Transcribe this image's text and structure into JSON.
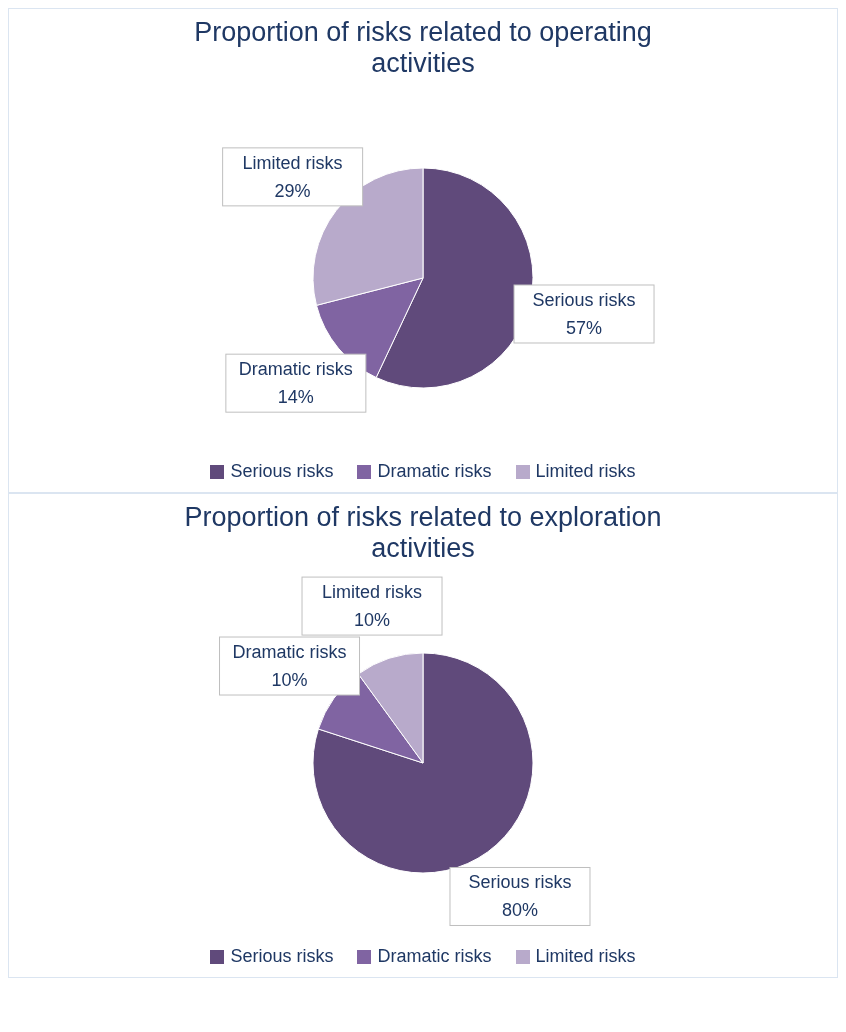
{
  "chart_data": [
    {
      "type": "pie",
      "title": "Proportion of risks related to operating activities",
      "categories": [
        "Serious risks",
        "Dramatic risks",
        "Limited risks"
      ],
      "values": [
        57,
        14,
        29
      ],
      "value_labels": [
        "57%",
        "14%",
        "29%"
      ],
      "colors": [
        "#604a7b",
        "#8064a2",
        "#b8aacb"
      ],
      "legend": "bottom"
    },
    {
      "type": "pie",
      "title": "Proportion of risks related to exploration activities",
      "categories": [
        "Serious risks",
        "Dramatic risks",
        "Limited risks"
      ],
      "values": [
        80,
        10,
        10
      ],
      "value_labels": [
        "80%",
        "10%",
        "10%"
      ],
      "colors": [
        "#604a7b",
        "#8064a2",
        "#b8aacb"
      ],
      "legend": "bottom"
    }
  ]
}
